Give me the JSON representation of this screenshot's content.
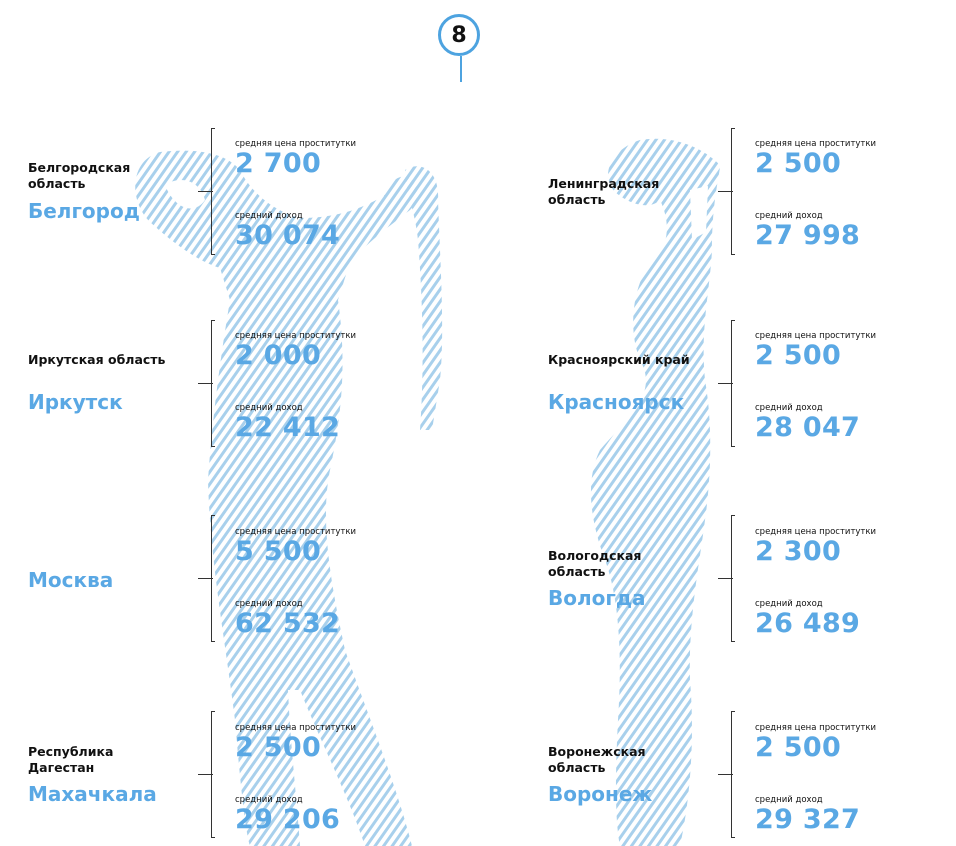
{
  "badge": "8",
  "price_label": "средняя цена проститутки",
  "income_label": "средний доход",
  "colors": {
    "accent": "#5aa8e4",
    "hatch": "#a8d0ec",
    "text": "#111111"
  },
  "left": [
    {
      "region": "Белгородская область",
      "city": "Белгород",
      "price": "2 700",
      "income": "30 074"
    },
    {
      "region": "Иркутская область",
      "city": "Иркутск",
      "price": "2 000",
      "income": "22 412"
    },
    {
      "region": "",
      "city": "Москва",
      "price": "5 500",
      "income": "62 532"
    },
    {
      "region": "Республика Дагестан",
      "city": "Махачкала",
      "price": "2 500",
      "income": "29 206"
    }
  ],
  "right": [
    {
      "region": "Ленинградская область",
      "city": "",
      "price": "2 500",
      "income": "27 998"
    },
    {
      "region": "Красноярский край",
      "city": "Красноярск",
      "price": "2 500",
      "income": "28 047"
    },
    {
      "region": "Вологодская область",
      "city": "Вологда",
      "price": "2 300",
      "income": "26 489"
    },
    {
      "region": "Воронежская область",
      "city": "Воронеж",
      "price": "2 500",
      "income": "29 327"
    }
  ]
}
